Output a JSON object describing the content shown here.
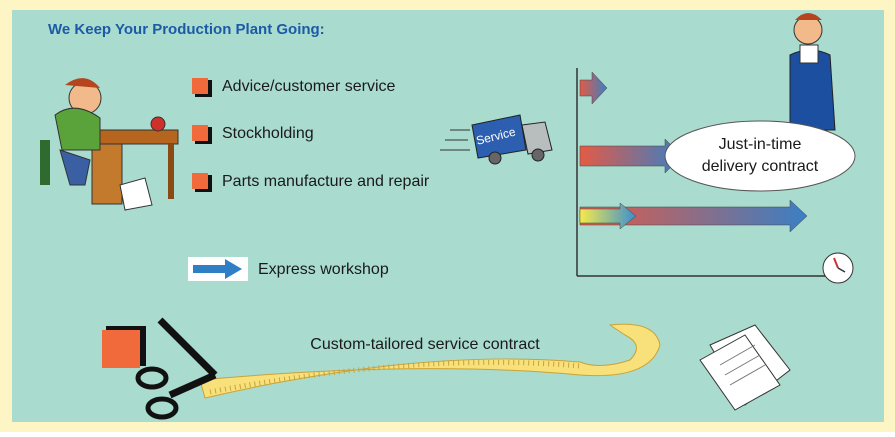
{
  "header": {
    "title": "We Keep Your Production Plant Going:"
  },
  "services": [
    "Advice/customer service",
    "Stockholding",
    "Parts manufacture and repair"
  ],
  "express": "Express workshop",
  "truck": "Service",
  "jit": [
    "Just-in-time",
    "delivery contract"
  ],
  "contract": "Custom-tailored service contract"
}
